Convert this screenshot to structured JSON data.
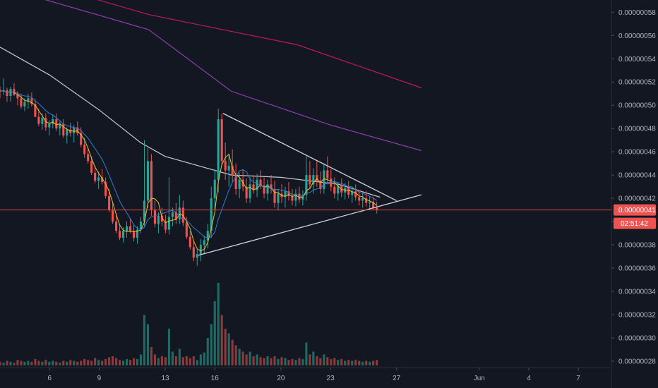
{
  "colors": {
    "background": "#131722",
    "up": "#26a69a",
    "down": "#ef5350",
    "volume_up": "#1f6b63",
    "volume_down": "#8c3a3b",
    "ma_fast": "#e6c229",
    "ma_mid": "#2d7fd3",
    "ma_slow": "#c9c9cf",
    "ma_200": "#8e3fb0",
    "ma_300": "#c2185b",
    "trendline": "#d1d4dc",
    "price_line": "#e0403a",
    "axis_text": "#b2b5be",
    "price_tag_bg": "#ef5350",
    "price_tag_text": "#ffffff"
  },
  "chart_data": {
    "type": "candlestick",
    "y_axis": {
      "ticks": [
        "0.00000058",
        "0.00000056",
        "0.00000054",
        "0.00000052",
        "0.00000050",
        "0.00000048",
        "0.00000046",
        "0.00000044",
        "0.00000042",
        "0.00000040",
        "0.00000038",
        "0.00000036",
        "0.00000034",
        "0.00000032",
        "0.00000030",
        "0.00000028"
      ],
      "tick_values": [
        0.58,
        0.56,
        0.54,
        0.52,
        0.5,
        0.48,
        0.46,
        0.44,
        0.42,
        0.4,
        0.38,
        0.36,
        0.34,
        0.32,
        0.3,
        0.28
      ],
      "range": [
        0.2745,
        0.5905
      ],
      "unit_scale": 1e-06
    },
    "x_axis": {
      "ticks": [
        "6",
        "9",
        "13",
        "16",
        "20",
        "23",
        "27",
        "Jun",
        "4",
        "7"
      ],
      "tick_days": [
        6,
        9,
        13,
        16,
        20,
        23,
        27,
        32,
        35,
        38
      ],
      "range": [
        3.0,
        40.0
      ]
    },
    "last_price": {
      "label": "0.00000041",
      "value": 0.41,
      "countdown": "02:51:42"
    },
    "candle_count": 108,
    "candles": [
      [
        0.513,
        0.516,
        0.506,
        0.512
      ],
      [
        0.512,
        0.523,
        0.509,
        0.513
      ],
      [
        0.513,
        0.515,
        0.503,
        0.508
      ],
      [
        0.508,
        0.516,
        0.503,
        0.514
      ],
      [
        0.514,
        0.519,
        0.508,
        0.509
      ],
      [
        0.509,
        0.512,
        0.5,
        0.506
      ],
      [
        0.506,
        0.51,
        0.497,
        0.499
      ],
      [
        0.499,
        0.506,
        0.495,
        0.503
      ],
      [
        0.503,
        0.51,
        0.497,
        0.506
      ],
      [
        0.506,
        0.511,
        0.499,
        0.501
      ],
      [
        0.501,
        0.505,
        0.49,
        0.49
      ],
      [
        0.49,
        0.497,
        0.482,
        0.484
      ],
      [
        0.484,
        0.493,
        0.479,
        0.489
      ],
      [
        0.489,
        0.493,
        0.478,
        0.481
      ],
      [
        0.481,
        0.487,
        0.474,
        0.484
      ],
      [
        0.484,
        0.492,
        0.48,
        0.488
      ],
      [
        0.488,
        0.493,
        0.478,
        0.48
      ],
      [
        0.48,
        0.486,
        0.474,
        0.484
      ],
      [
        0.484,
        0.488,
        0.472,
        0.474
      ],
      [
        0.474,
        0.481,
        0.467,
        0.479
      ],
      [
        0.479,
        0.485,
        0.473,
        0.476
      ],
      [
        0.476,
        0.483,
        0.468,
        0.481
      ],
      [
        0.481,
        0.486,
        0.474,
        0.476
      ],
      [
        0.476,
        0.481,
        0.464,
        0.466
      ],
      [
        0.466,
        0.472,
        0.455,
        0.458
      ],
      [
        0.458,
        0.463,
        0.45,
        0.452
      ],
      [
        0.452,
        0.456,
        0.44,
        0.442
      ],
      [
        0.442,
        0.448,
        0.433,
        0.435
      ],
      [
        0.435,
        0.443,
        0.428,
        0.438
      ],
      [
        0.438,
        0.445,
        0.432,
        0.434
      ],
      [
        0.434,
        0.438,
        0.42,
        0.422
      ],
      [
        0.422,
        0.428,
        0.408,
        0.41
      ],
      [
        0.41,
        0.416,
        0.398,
        0.4
      ],
      [
        0.4,
        0.407,
        0.39,
        0.392
      ],
      [
        0.392,
        0.398,
        0.384,
        0.386
      ],
      [
        0.386,
        0.395,
        0.382,
        0.392
      ],
      [
        0.392,
        0.4,
        0.386,
        0.396
      ],
      [
        0.396,
        0.403,
        0.39,
        0.392
      ],
      [
        0.392,
        0.397,
        0.383,
        0.386
      ],
      [
        0.386,
        0.396,
        0.381,
        0.393
      ],
      [
        0.393,
        0.404,
        0.39,
        0.4
      ],
      [
        0.4,
        0.47,
        0.396,
        0.418
      ],
      [
        0.418,
        0.463,
        0.412,
        0.452
      ],
      [
        0.452,
        0.458,
        0.405,
        0.41
      ],
      [
        0.41,
        0.418,
        0.395,
        0.398
      ],
      [
        0.398,
        0.408,
        0.39,
        0.405
      ],
      [
        0.405,
        0.412,
        0.396,
        0.4
      ],
      [
        0.4,
        0.406,
        0.39,
        0.393
      ],
      [
        0.393,
        0.438,
        0.389,
        0.404
      ],
      [
        0.404,
        0.412,
        0.396,
        0.408
      ],
      [
        0.408,
        0.416,
        0.398,
        0.402
      ],
      [
        0.402,
        0.423,
        0.398,
        0.412
      ],
      [
        0.412,
        0.418,
        0.396,
        0.399
      ],
      [
        0.399,
        0.404,
        0.385,
        0.387
      ],
      [
        0.387,
        0.392,
        0.376,
        0.378
      ],
      [
        0.378,
        0.383,
        0.366,
        0.369
      ],
      [
        0.369,
        0.376,
        0.362,
        0.372
      ],
      [
        0.372,
        0.385,
        0.366,
        0.38
      ],
      [
        0.38,
        0.388,
        0.372,
        0.384
      ],
      [
        0.384,
        0.398,
        0.377,
        0.392
      ],
      [
        0.392,
        0.43,
        0.386,
        0.42
      ],
      [
        0.42,
        0.445,
        0.41,
        0.436
      ],
      [
        0.436,
        0.497,
        0.425,
        0.488
      ],
      [
        0.488,
        0.493,
        0.448,
        0.452
      ],
      [
        0.452,
        0.468,
        0.436,
        0.444
      ],
      [
        0.444,
        0.458,
        0.43,
        0.448
      ],
      [
        0.448,
        0.462,
        0.434,
        0.44
      ],
      [
        0.44,
        0.45,
        0.423,
        0.428
      ],
      [
        0.428,
        0.442,
        0.42,
        0.436
      ],
      [
        0.436,
        0.445,
        0.426,
        0.43
      ],
      [
        0.43,
        0.437,
        0.416,
        0.42
      ],
      [
        0.42,
        0.438,
        0.416,
        0.432
      ],
      [
        0.432,
        0.44,
        0.424,
        0.427
      ],
      [
        0.427,
        0.441,
        0.421,
        0.436
      ],
      [
        0.436,
        0.444,
        0.428,
        0.431
      ],
      [
        0.431,
        0.438,
        0.42,
        0.424
      ],
      [
        0.424,
        0.436,
        0.418,
        0.432
      ],
      [
        0.432,
        0.44,
        0.424,
        0.428
      ],
      [
        0.428,
        0.435,
        0.412,
        0.416
      ],
      [
        0.416,
        0.428,
        0.41,
        0.424
      ],
      [
        0.424,
        0.432,
        0.416,
        0.421
      ],
      [
        0.421,
        0.43,
        0.412,
        0.426
      ],
      [
        0.426,
        0.434,
        0.418,
        0.422
      ],
      [
        0.422,
        0.428,
        0.414,
        0.418
      ],
      [
        0.418,
        0.428,
        0.413,
        0.424
      ],
      [
        0.424,
        0.43,
        0.416,
        0.419
      ],
      [
        0.419,
        0.427,
        0.414,
        0.423
      ],
      [
        0.423,
        0.456,
        0.418,
        0.44
      ],
      [
        0.44,
        0.452,
        0.428,
        0.432
      ],
      [
        0.432,
        0.446,
        0.424,
        0.44
      ],
      [
        0.44,
        0.452,
        0.43,
        0.435
      ],
      [
        0.435,
        0.443,
        0.424,
        0.428
      ],
      [
        0.428,
        0.45,
        0.424,
        0.444
      ],
      [
        0.444,
        0.456,
        0.432,
        0.437
      ],
      [
        0.437,
        0.445,
        0.426,
        0.43
      ],
      [
        0.43,
        0.438,
        0.42,
        0.424
      ],
      [
        0.424,
        0.434,
        0.418,
        0.431
      ],
      [
        0.431,
        0.437,
        0.421,
        0.425
      ],
      [
        0.425,
        0.433,
        0.419,
        0.429
      ],
      [
        0.429,
        0.435,
        0.42,
        0.423
      ],
      [
        0.423,
        0.43,
        0.416,
        0.426
      ],
      [
        0.426,
        0.432,
        0.418,
        0.421
      ],
      [
        0.421,
        0.427,
        0.414,
        0.418
      ],
      [
        0.418,
        0.425,
        0.412,
        0.42
      ],
      [
        0.42,
        0.426,
        0.413,
        0.416
      ],
      [
        0.416,
        0.422,
        0.41,
        0.417
      ],
      [
        0.417,
        0.421,
        0.41,
        0.412
      ],
      [
        0.412,
        0.417,
        0.407,
        0.41
      ]
    ],
    "volume_levels": [
      0.04,
      0.03,
      0.05,
      0.04,
      0.03,
      0.06,
      0.05,
      0.04,
      0.05,
      0.04,
      0.07,
      0.05,
      0.04,
      0.06,
      0.04,
      0.05,
      0.04,
      0.03,
      0.05,
      0.04,
      0.06,
      0.05,
      0.04,
      0.05,
      0.07,
      0.06,
      0.05,
      0.08,
      0.06,
      0.05,
      0.07,
      0.09,
      0.1,
      0.08,
      0.06,
      0.05,
      0.07,
      0.06,
      0.08,
      0.07,
      0.12,
      0.55,
      0.45,
      0.2,
      0.12,
      0.08,
      0.1,
      0.09,
      0.4,
      0.15,
      0.1,
      0.18,
      0.09,
      0.1,
      0.08,
      0.1,
      0.06,
      0.12,
      0.14,
      0.3,
      0.45,
      0.7,
      0.9,
      0.55,
      0.4,
      0.35,
      0.28,
      0.22,
      0.18,
      0.15,
      0.12,
      0.15,
      0.1,
      0.12,
      0.09,
      0.08,
      0.1,
      0.08,
      0.1,
      0.07,
      0.09,
      0.08,
      0.06,
      0.07,
      0.06,
      0.08,
      0.07,
      0.25,
      0.12,
      0.15,
      0.1,
      0.08,
      0.12,
      0.09,
      0.07,
      0.08,
      0.06,
      0.07,
      0.05,
      0.06,
      0.05,
      0.06,
      0.05,
      0.04,
      0.05,
      0.04,
      0.05,
      0.06
    ],
    "moving_averages": [
      {
        "id": "ma_300",
        "points": [
          [
            3.0,
            0.615
          ],
          [
            12.0,
            0.578
          ],
          [
            21.0,
            0.552
          ],
          [
            28.5,
            0.515
          ]
        ]
      },
      {
        "id": "ma_200",
        "points": [
          [
            3.0,
            0.602
          ],
          [
            12.0,
            0.565
          ],
          [
            17.0,
            0.512
          ],
          [
            23.0,
            0.483
          ],
          [
            28.5,
            0.461
          ]
        ]
      },
      {
        "id": "ma_slow",
        "points": [
          [
            3.0,
            0.55
          ],
          [
            6.0,
            0.526
          ],
          [
            9.0,
            0.496
          ],
          [
            11.5,
            0.468
          ],
          [
            13.0,
            0.456
          ],
          [
            15.0,
            0.448
          ],
          [
            17.0,
            0.44
          ],
          [
            20.0,
            0.438
          ],
          [
            23.5,
            0.432
          ],
          [
            26.0,
            0.421
          ]
        ]
      }
    ],
    "trendlines": [
      {
        "id": "upper",
        "from": [
          16.5,
          0.493
        ],
        "to": [
          27.0,
          0.418
        ]
      },
      {
        "id": "lower",
        "from": [
          15.0,
          0.371
        ],
        "to": [
          28.5,
          0.423
        ]
      }
    ]
  }
}
